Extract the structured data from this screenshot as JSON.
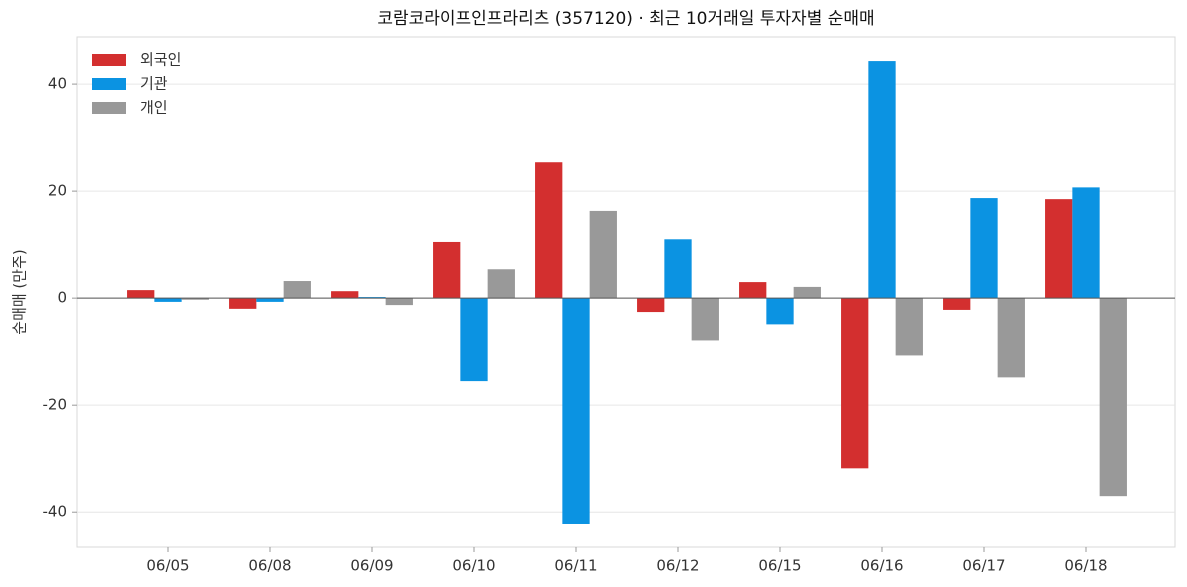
{
  "chart_data": {
    "type": "bar",
    "title": "코람코라이프인프라리츠 (357120) · 최근 10거래일 투자자별 순매매",
    "y_label": "순매매 (만주)",
    "categories": [
      "06/05",
      "06/08",
      "06/09",
      "06/10",
      "06/11",
      "06/12",
      "06/15",
      "06/16",
      "06/17",
      "06/18"
    ],
    "series": [
      {
        "name": "외국인",
        "color": "#d32f2f",
        "values": [
          1.5,
          -2.0,
          1.3,
          10.5,
          25.4,
          -2.6,
          3.0,
          -31.8,
          -2.2,
          18.5
        ]
      },
      {
        "name": "기관",
        "color": "#0b93e2",
        "values": [
          -0.7,
          -0.7,
          0.2,
          -15.5,
          -42.2,
          11.0,
          -4.9,
          44.3,
          18.7,
          20.7
        ]
      },
      {
        "name": "개인",
        "color": "#999999",
        "values": [
          -0.3,
          3.2,
          -1.3,
          5.4,
          16.3,
          -7.9,
          2.1,
          -10.7,
          -14.8,
          -37.0
        ]
      }
    ],
    "ylim": [
      -46.5,
      48.8
    ],
    "yticks": [
      -40,
      -20,
      0,
      20,
      40
    ],
    "grid": true,
    "legend": "upper-left"
  }
}
